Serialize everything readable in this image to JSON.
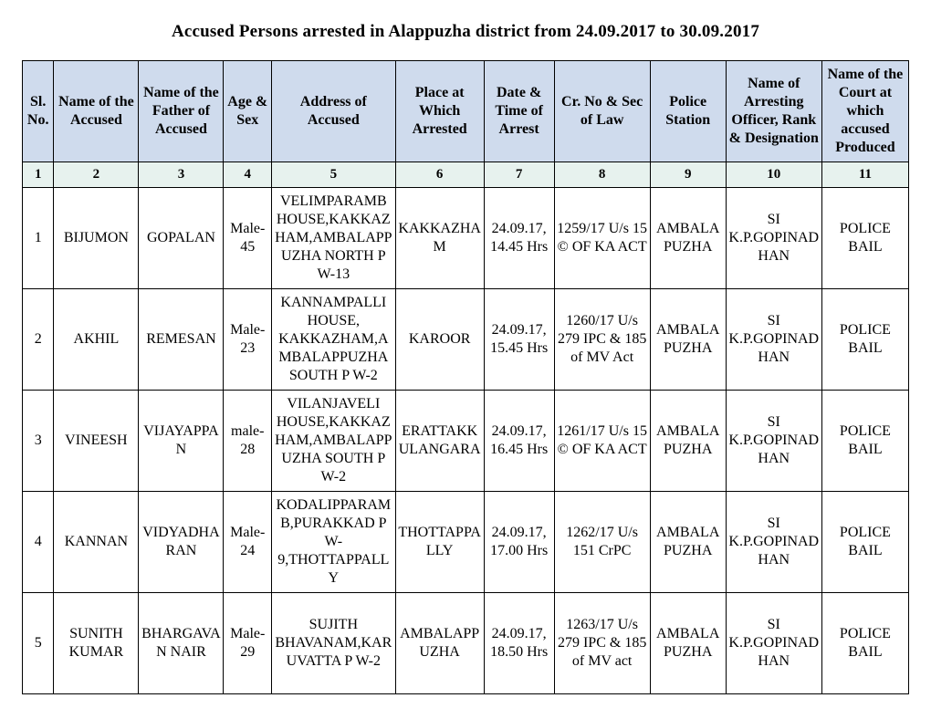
{
  "title": "Accused Persons arrested in    Alappuzha  district from    24.09.2017 to 30.09.2017",
  "table": {
    "header_bg": "#cfdbed",
    "numrow_bg": "#e7f2ee",
    "border_color": "#000000",
    "columns": [
      {
        "label": "Sl. No.",
        "num": "1"
      },
      {
        "label": "Name of the Accused",
        "num": "2"
      },
      {
        "label": "Name of the Father of Accused",
        "num": "3"
      },
      {
        "label": "Age & Sex",
        "num": "4"
      },
      {
        "label": "Address of Accused",
        "num": "5"
      },
      {
        "label": "Place at Which Arrested",
        "num": "6"
      },
      {
        "label": "Date & Time of Arrest",
        "num": "7"
      },
      {
        "label": "Cr. No & Sec of Law",
        "num": "8"
      },
      {
        "label": "Police Station",
        "num": "9"
      },
      {
        "label": "Name of Arresting Officer, Rank & Designation",
        "num": "10"
      },
      {
        "label": "Name of the Court at which accused Produced",
        "num": "11"
      }
    ],
    "rows": [
      {
        "sl": "1",
        "name": "BIJUMON",
        "father": "GOPALAN",
        "age_sex": "Male-45",
        "address": "VELIMPARAMB HOUSE,KAKKAZHAM,AMBALAPPUZHA NORTH P W-13",
        "place": "KAKKAZHAM",
        "datetime": "24.09.17, 14.45 Hrs",
        "cr": "1259/17 U/s 15 © OF KA ACT",
        "station": "AMBALAPUZHA",
        "officer": "SI K.P.GOPINADHAN",
        "court": "POLICE BAIL"
      },
      {
        "sl": "2",
        "name": "AKHIL",
        "father": "REMESAN",
        "age_sex": "Male-23",
        "address": "KANNAMPALLI HOUSE, KAKKAZHAM,AMBALAPPUZHA SOUTH P W-2",
        "place": "KAROOR",
        "datetime": "24.09.17, 15.45 Hrs",
        "cr": "1260/17 U/s 279 IPC & 185 of MV Act",
        "station": "AMBALAPUZHA",
        "officer": "SI K.P.GOPINADHAN",
        "court": "POLICE BAIL"
      },
      {
        "sl": "3",
        "name": "VINEESH",
        "father": "VIJAYAPPAN",
        "age_sex": "male-28",
        "address": "VILANJAVELI HOUSE,KAKKAZHAM,AMBALAPPUZHA SOUTH P W-2",
        "place": "ERATTAKKULANGARA",
        "datetime": "24.09.17, 16.45 Hrs",
        "cr": "1261/17 U/s 15 © OF KA ACT",
        "station": "AMBALAPUZHA",
        "officer": "SI K.P.GOPINADHAN",
        "court": "POLICE BAIL"
      },
      {
        "sl": "4",
        "name": "KANNAN",
        "father": "VIDYADHARAN",
        "age_sex": "Male-24",
        "address": "KODALIPPARAMB,PURAKKAD P W-9,THOTTAPPALLY",
        "place": "THOTTAPPALLY",
        "datetime": "24.09.17, 17.00 Hrs",
        "cr": "1262/17 U/s 151 CrPC",
        "station": "AMBALAPUZHA",
        "officer": "SI K.P.GOPINADHAN",
        "court": "POLICE BAIL"
      },
      {
        "sl": "5",
        "name": "SUNITH KUMAR",
        "father": "BHARGAVAN NAIR",
        "age_sex": "Male-29",
        "address": "SUJITH BHAVANAM,KARUVATTA P W-2",
        "place": "AMBALAPPUZHA",
        "datetime": "24.09.17, 18.50 Hrs",
        "cr": "1263/17 U/s 279 IPC & 185 of MV act",
        "station": "AMBALAPUZHA",
        "officer": "SI K.P.GOPINADHAN",
        "court": "POLICE BAIL"
      }
    ]
  }
}
